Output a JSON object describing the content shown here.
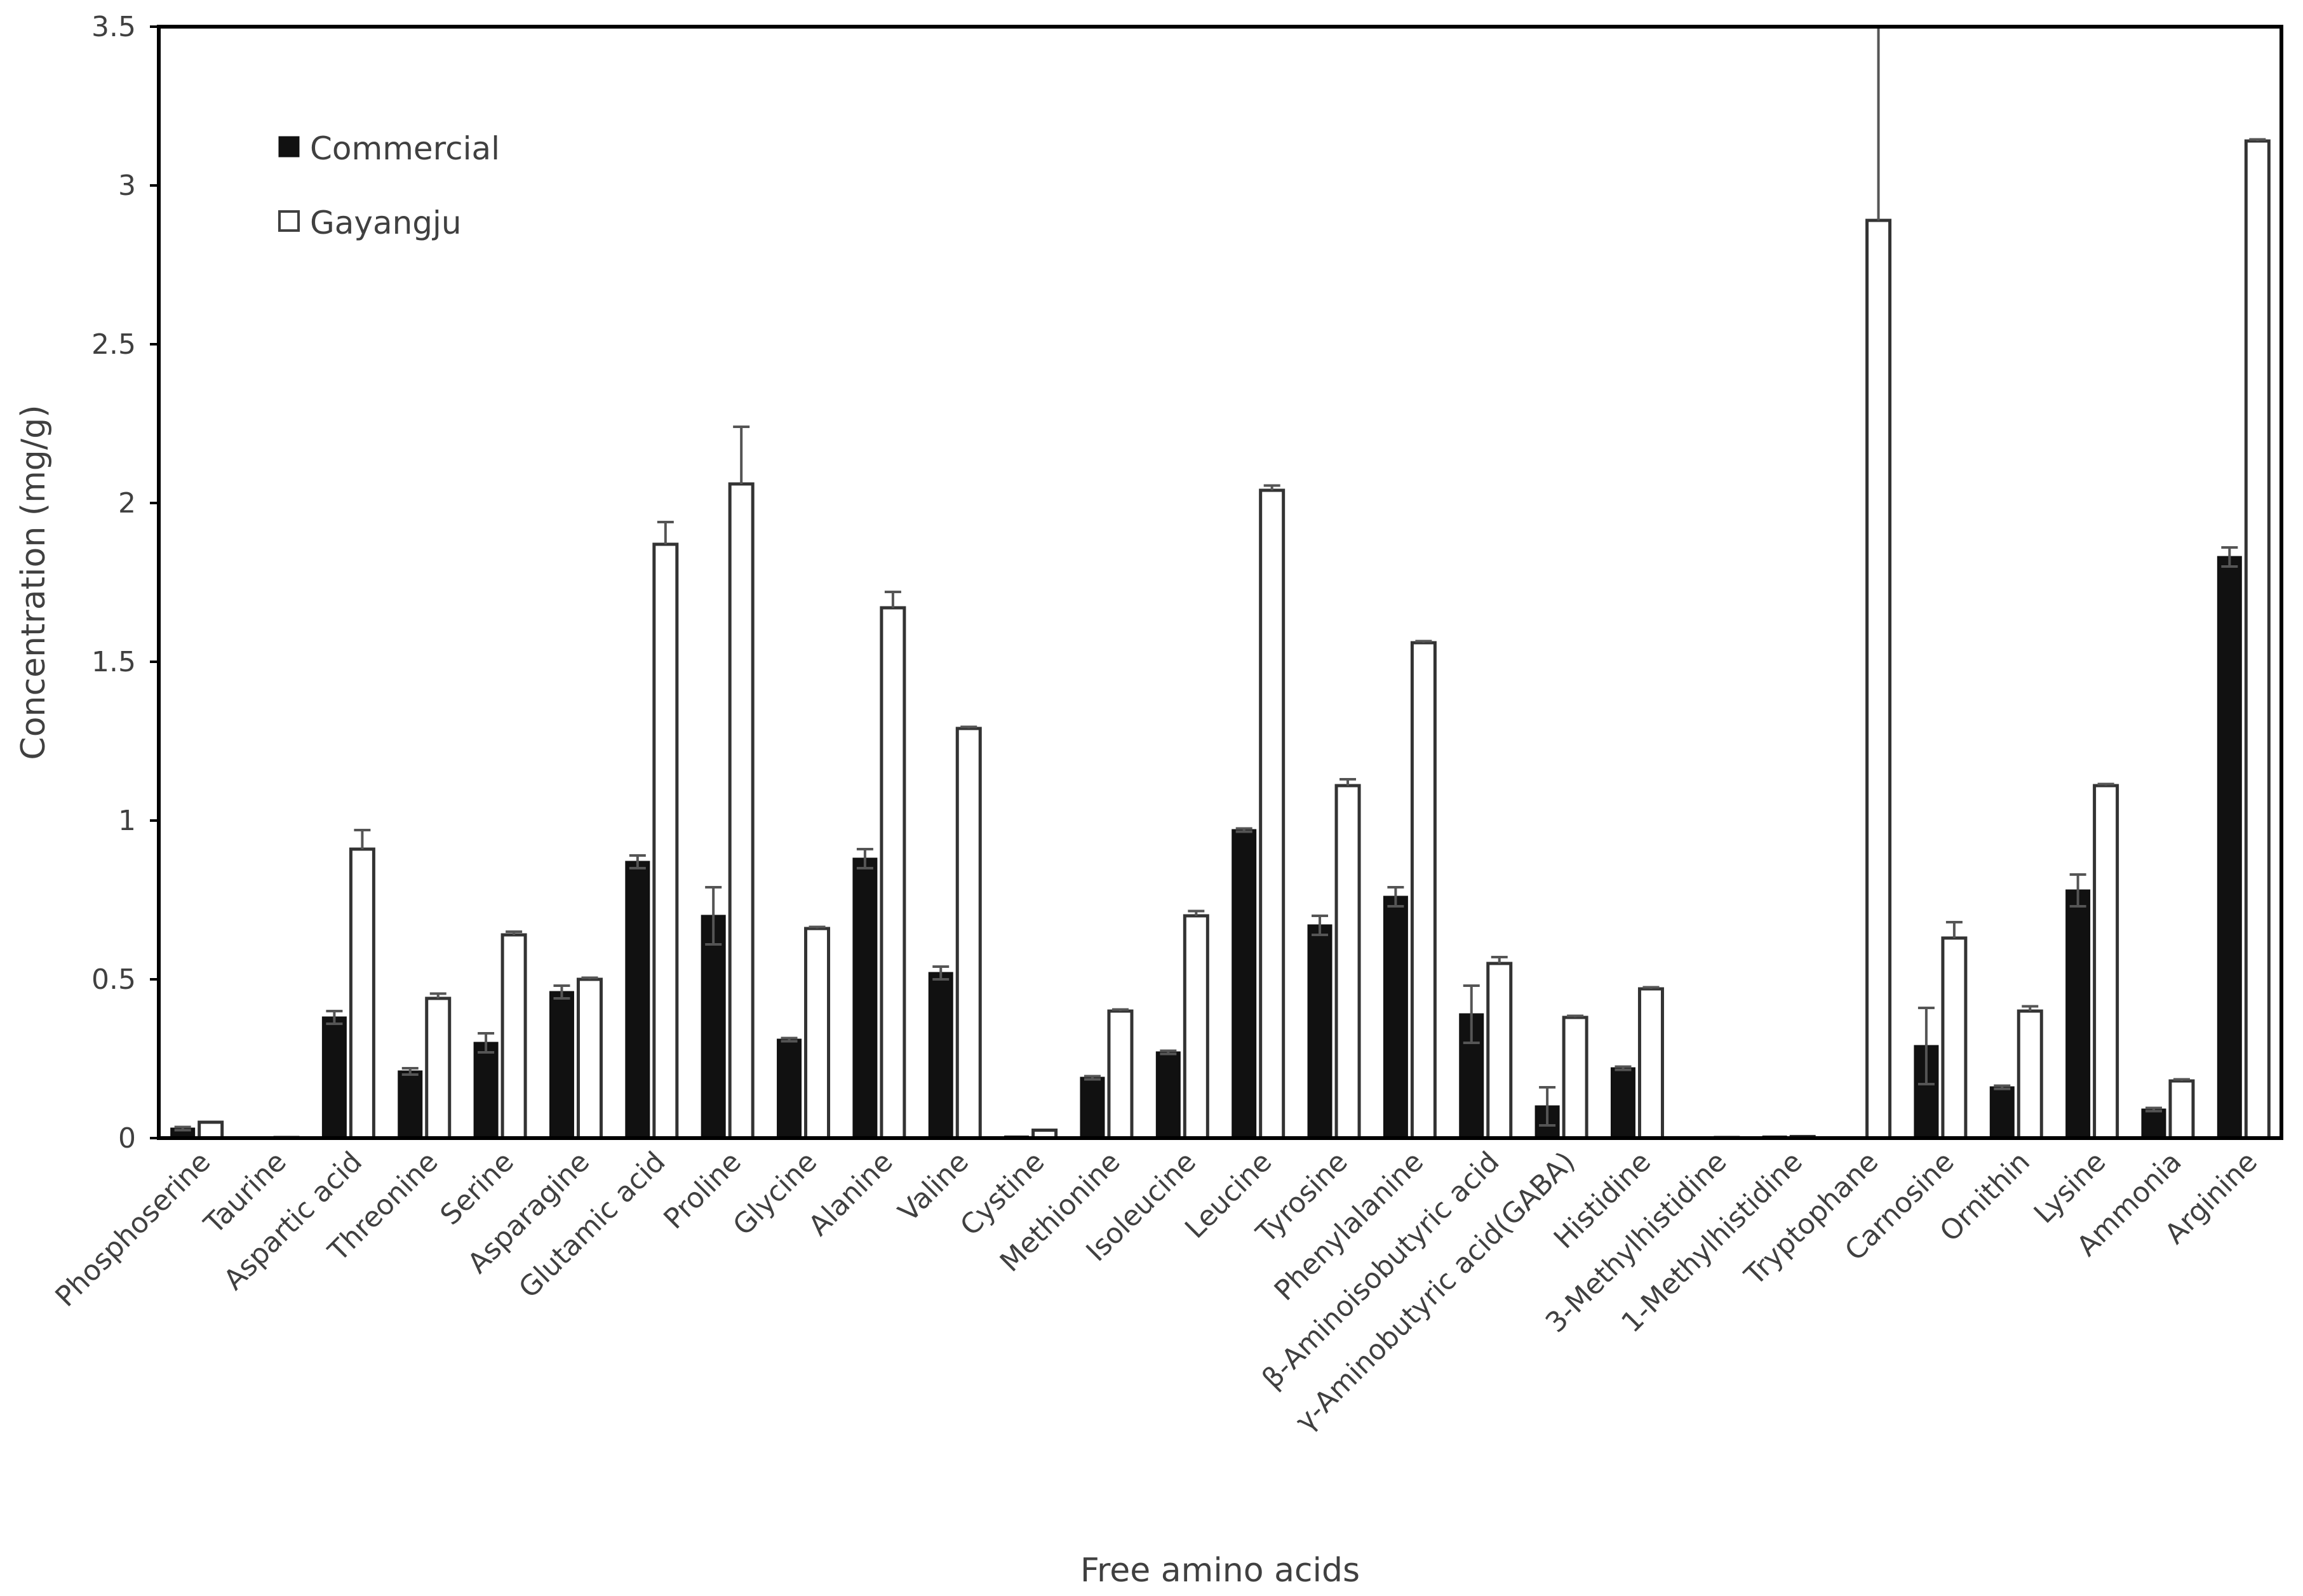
{
  "chart_data": {
    "type": "bar",
    "title": "",
    "xlabel": "Free amino acids",
    "ylabel": "Concentration (mg/g)",
    "ylim": [
      0,
      3.5
    ],
    "yticks": [
      0,
      0.5,
      1,
      1.5,
      2,
      2.5,
      3,
      3.5
    ],
    "ytick_labels": [
      "0",
      "0.5",
      "1",
      "1.5",
      "2",
      "2.5",
      "3",
      "3.5"
    ],
    "grid": false,
    "legend_position": "top-left",
    "categories": [
      "Phosphoserine",
      "Taurine",
      "Aspartic acid",
      "Threonine",
      "Serine",
      "Asparagine",
      "Glutamic acid",
      "Proline",
      "Glycine",
      "Alanine",
      "Valine",
      "Cystine",
      "Methionine",
      "Isoleucine",
      "Leucine",
      "Tyrosine",
      "Phenylalanine",
      "β-Aminoisobutyric acid",
      "γ-Aminobutyric acid(GABA)",
      "Histidine",
      "3-Methylhistidine",
      "1-Methylhistidine",
      "Tryptophane",
      "Carnosine",
      "Ornithin",
      "Lysine",
      "Ammonia",
      "Arginine"
    ],
    "series": [
      {
        "name": "Commercial",
        "color": "#111111",
        "values": [
          0.03,
          0.0,
          0.38,
          0.21,
          0.3,
          0.46,
          0.87,
          0.7,
          0.31,
          0.88,
          0.52,
          0.005,
          0.19,
          0.27,
          0.97,
          0.67,
          0.76,
          0.39,
          0.1,
          0.22,
          0.0,
          0.005,
          0.0,
          0.29,
          0.16,
          0.78,
          0.09,
          1.83
        ],
        "errors": [
          0.005,
          0.0,
          0.02,
          0.01,
          0.03,
          0.02,
          0.02,
          0.09,
          0.005,
          0.03,
          0.02,
          0.0,
          0.005,
          0.005,
          0.005,
          0.03,
          0.03,
          0.09,
          0.06,
          0.005,
          0.0,
          0.0,
          0.0,
          0.12,
          0.005,
          0.05,
          0.005,
          0.03
        ]
      },
      {
        "name": "Gayangju",
        "color": "#ffffff",
        "values": [
          0.05,
          0.002,
          0.91,
          0.44,
          0.64,
          0.5,
          1.87,
          2.06,
          0.66,
          1.67,
          1.29,
          0.025,
          0.4,
          0.7,
          2.04,
          1.11,
          1.56,
          0.55,
          0.38,
          0.47,
          0.002,
          0.005,
          2.89,
          0.63,
          0.4,
          1.11,
          0.18,
          3.14
        ],
        "errors": [
          0.0,
          0.0,
          0.06,
          0.015,
          0.01,
          0.005,
          0.07,
          0.18,
          0.005,
          0.05,
          0.005,
          0.0,
          0.005,
          0.015,
          0.015,
          0.02,
          0.005,
          0.02,
          0.005,
          0.005,
          0.0,
          0.0,
          0.62,
          0.05,
          0.015,
          0.005,
          0.005,
          0.005
        ]
      }
    ]
  }
}
